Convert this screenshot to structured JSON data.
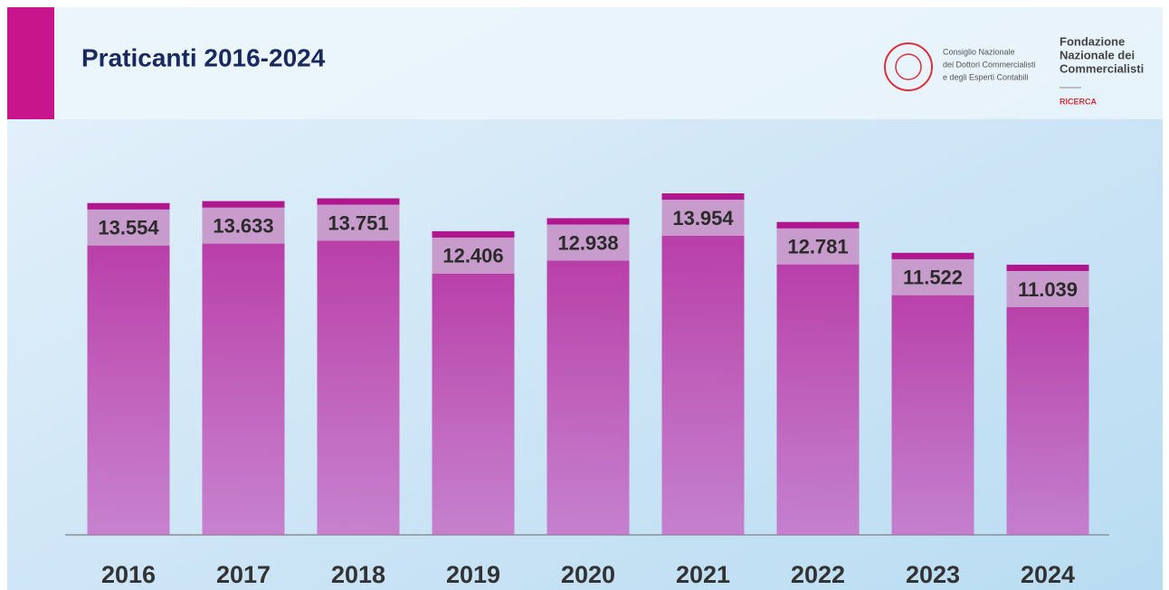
{
  "chart_data": {
    "type": "bar",
    "title": "Praticanti 2016-2024",
    "categories": [
      "2016",
      "2017",
      "2018",
      "2019",
      "2020",
      "2021",
      "2022",
      "2023",
      "2024"
    ],
    "values": [
      13554,
      13633,
      13751,
      12406,
      12938,
      13954,
      12781,
      11522,
      11039
    ],
    "value_labels": [
      "13.554",
      "13.633",
      "13.751",
      "12.406",
      "12.938",
      "13.954",
      "12.781",
      "11.522",
      "11.039"
    ],
    "color": "#b52a9e"
  },
  "logos": {
    "cndcec": [
      "Consiglio Nazionale",
      "dei Dottori Commercialisti",
      "e degli Esperti Contabili"
    ],
    "fondazione": [
      "Fondazione",
      "Nazionale dei",
      "Commercialisti"
    ],
    "fondazione_sub": "RICERCA"
  }
}
